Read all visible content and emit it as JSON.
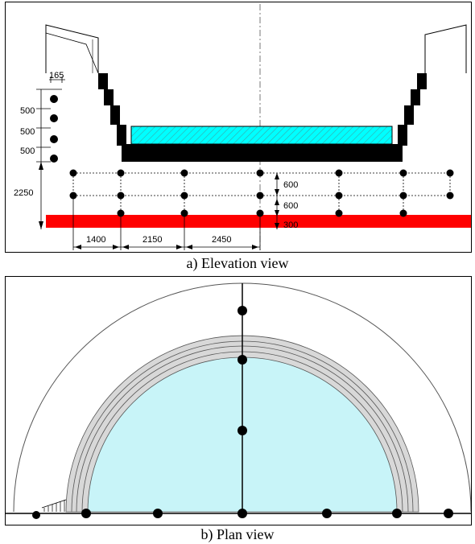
{
  "captions": {
    "elevation": "a) Elevation view",
    "plan": "b) Plan view"
  },
  "elevation": {
    "dims_left": [
      "165",
      "500",
      "500",
      "500",
      "2250"
    ],
    "dims_right": [
      "600",
      "600",
      "300"
    ],
    "dims_bottom": [
      "1400",
      "2150",
      "2450"
    ]
  },
  "colors": {
    "water": "#00ffff",
    "slab": "#000000",
    "base_layer": "#ff0000",
    "plan_water": "#c8f4f8",
    "plan_ring": "#d8d8d8"
  }
}
